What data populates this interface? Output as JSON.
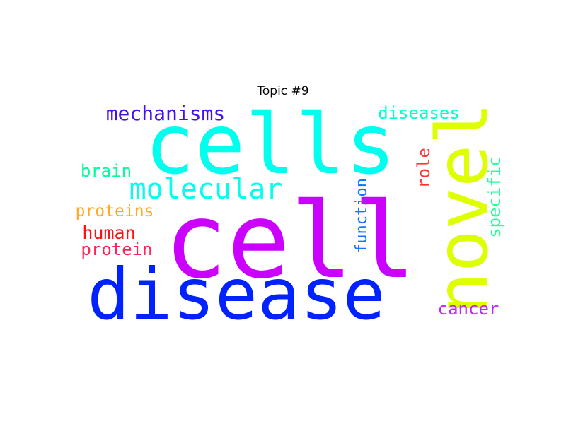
{
  "title": "Topic #9",
  "words": [
    {
      "text": "cell",
      "color": "#cc00ff"
    },
    {
      "text": "cells",
      "color": "#00ffee"
    },
    {
      "text": "disease",
      "color": "#0022ff"
    },
    {
      "text": "novel",
      "color": "#ddff00"
    },
    {
      "text": "molecular",
      "color": "#00ffee"
    },
    {
      "text": "mechanisms",
      "color": "#4411ee"
    },
    {
      "text": "diseases",
      "color": "#00ffcc"
    },
    {
      "text": "brain",
      "color": "#00ff99"
    },
    {
      "text": "proteins",
      "color": "#ffaa22"
    },
    {
      "text": "human",
      "color": "#ff1111"
    },
    {
      "text": "protein",
      "color": "#ff2255"
    },
    {
      "text": "function",
      "color": "#1177ff"
    },
    {
      "text": "role",
      "color": "#ff3333"
    },
    {
      "text": "specific",
      "color": "#22ff99"
    },
    {
      "text": "cancer",
      "color": "#bb22ff"
    }
  ]
}
